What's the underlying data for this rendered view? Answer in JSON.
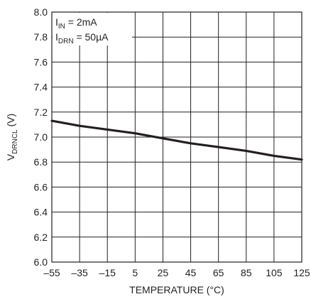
{
  "chart_data": {
    "type": "line",
    "xlabel": "TEMPERATURE (°C)",
    "ylabel": {
      "main": "V",
      "sub": "DRNCL",
      "unit": " (V)"
    },
    "xlim": [
      -55,
      125
    ],
    "ylim": [
      6.0,
      8.0
    ],
    "x_ticks": [
      -55,
      -35,
      -15,
      5,
      25,
      45,
      65,
      85,
      105,
      125
    ],
    "x_tick_labels": [
      "–55",
      "–35",
      "–15",
      "5",
      "25",
      "45",
      "65",
      "85",
      "105",
      "125"
    ],
    "y_ticks": [
      6.0,
      6.2,
      6.4,
      6.6,
      6.8,
      7.0,
      7.2,
      7.4,
      7.6,
      7.8,
      8.0
    ],
    "y_tick_labels": [
      "6.0",
      "6.2",
      "6.4",
      "6.6",
      "6.8",
      "7.0",
      "7.2",
      "7.4",
      "7.6",
      "7.8",
      "8.0"
    ],
    "grid": true,
    "annotations": [
      {
        "main": "I",
        "sub": "IN",
        "rest": " = 2mA"
      },
      {
        "main": "I",
        "sub": "DRN",
        "rest": " = 50µA"
      }
    ],
    "series": [
      {
        "x": [
          -55,
          -35,
          -15,
          5,
          25,
          45,
          65,
          85,
          105,
          125
        ],
        "y": [
          7.13,
          7.09,
          7.06,
          7.03,
          6.99,
          6.95,
          6.92,
          6.89,
          6.85,
          6.82
        ],
        "color": "#231f20"
      }
    ]
  }
}
